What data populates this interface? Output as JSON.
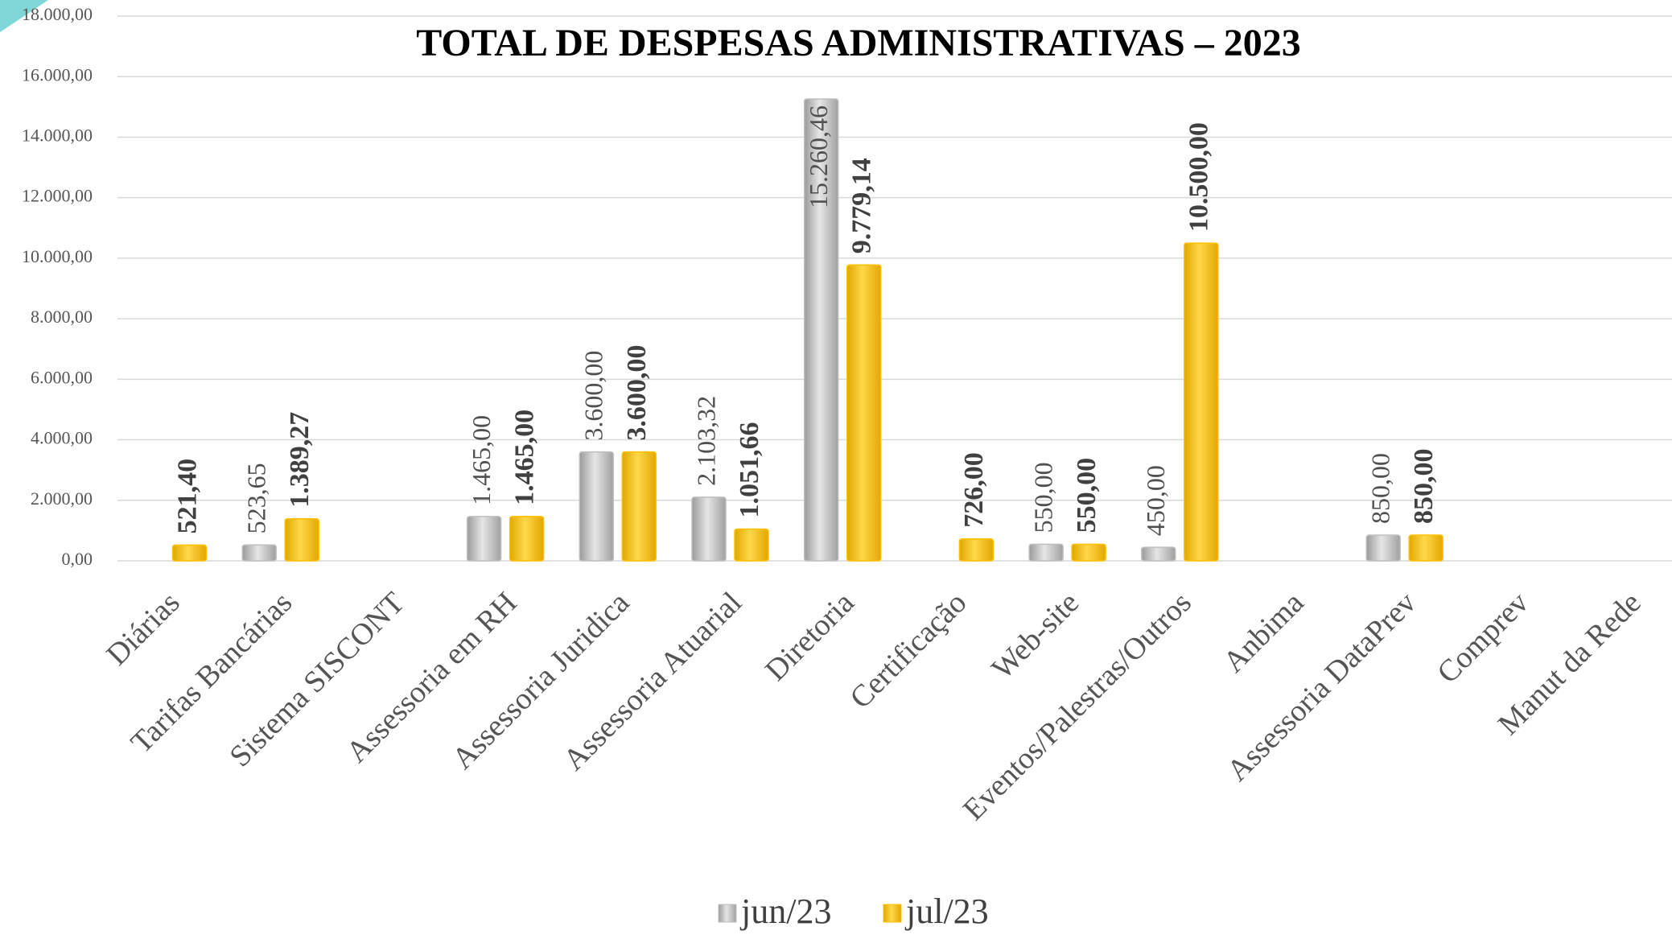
{
  "chart_data": {
    "type": "bar",
    "title": "TOTAL DE DESPESAS ADMINISTRATIVAS – 2023",
    "categories": [
      "Diárias",
      "Tarifas Bancárias",
      "Sistema SISCONT",
      "Assessoria em RH",
      "Assessoria  Juridica",
      "Assessoria Atuarial",
      "Diretoria",
      "Certificação",
      "Web-site",
      "Eventos/Palestras/Outros",
      "Anbima",
      "Assessoria DataPrev",
      "Comprev",
      "Manut da Rede"
    ],
    "series": [
      {
        "name": "jun/23",
        "color": "#bfbfbf",
        "values": [
          null,
          523.65,
          null,
          1465,
          3600,
          2103.32,
          15260.46,
          null,
          550,
          450,
          null,
          850,
          null,
          null
        ],
        "value_labels": [
          null,
          "523,65",
          null,
          "1.465,00",
          "3.600,00",
          "2.103,32",
          "15.260,46",
          null,
          "550,00",
          "450,00",
          null,
          "850,00",
          null,
          null
        ]
      },
      {
        "name": "jul/23",
        "color": "#ffc000",
        "values": [
          521.4,
          1389.27,
          null,
          1465,
          3600,
          1051.66,
          9779.14,
          726,
          550,
          10500,
          null,
          850,
          null,
          null
        ],
        "value_labels": [
          "521,40",
          "1.389,27",
          null,
          "1.465,00",
          "3.600,00",
          "1.051,66",
          "9.779,14",
          "726,00",
          "550,00",
          "10.500,00",
          null,
          "850,00",
          null,
          null
        ]
      }
    ],
    "ylim": [
      0,
      18000
    ],
    "yticks": [
      {
        "value": 0,
        "label": "0,00"
      },
      {
        "value": 2000,
        "label": "2.000,00"
      },
      {
        "value": 4000,
        "label": "4.000,00"
      },
      {
        "value": 6000,
        "label": "6.000,00"
      },
      {
        "value": 8000,
        "label": "8.000,00"
      },
      {
        "value": 10000,
        "label": "10.000,00"
      },
      {
        "value": 12000,
        "label": "12.000,00"
      },
      {
        "value": 14000,
        "label": "14.000,00"
      },
      {
        "value": 16000,
        "label": "16.000,00"
      },
      {
        "value": 18000,
        "label": "18.000,00"
      }
    ],
    "grid": true,
    "legend": "bottom"
  }
}
